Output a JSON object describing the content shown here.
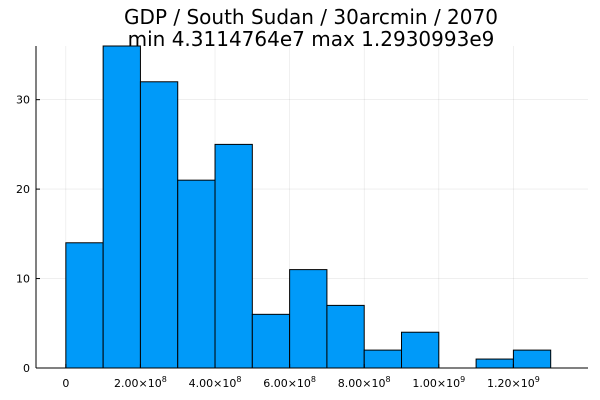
{
  "chart_data": {
    "type": "bar",
    "title_lines": [
      "GDP / South Sudan / 30arcmin / 2070",
      "min 4.3114764e7  max 1.2930993e9"
    ],
    "bin_edges": [
      0,
      100000000,
      200000000,
      300000000,
      400000000,
      500000000,
      600000000,
      700000000,
      800000000,
      900000000,
      1000000000,
      1100000000,
      1200000000,
      1300000000
    ],
    "counts": [
      14,
      36,
      32,
      21,
      25,
      6,
      11,
      7,
      2,
      4,
      0,
      1,
      2
    ],
    "xlim": [
      -80000000,
      1400000000
    ],
    "ylim": [
      0,
      36
    ],
    "x_ticks": [
      {
        "value": 0,
        "mantissa": "0",
        "exponent": ""
      },
      {
        "value": 200000000,
        "mantissa": "2.00×10",
        "exponent": "8"
      },
      {
        "value": 400000000,
        "mantissa": "4.00×10",
        "exponent": "8"
      },
      {
        "value": 600000000,
        "mantissa": "6.00×10",
        "exponent": "8"
      },
      {
        "value": 800000000,
        "mantissa": "8.00×10",
        "exponent": "8"
      },
      {
        "value": 1000000000,
        "mantissa": "1.00×10",
        "exponent": "9"
      },
      {
        "value": 1200000000,
        "mantissa": "1.20×10",
        "exponent": "9"
      }
    ],
    "y_ticks": [
      0,
      10,
      20,
      30
    ],
    "bar_color": "#009af9",
    "grid": true,
    "legend": "none"
  }
}
